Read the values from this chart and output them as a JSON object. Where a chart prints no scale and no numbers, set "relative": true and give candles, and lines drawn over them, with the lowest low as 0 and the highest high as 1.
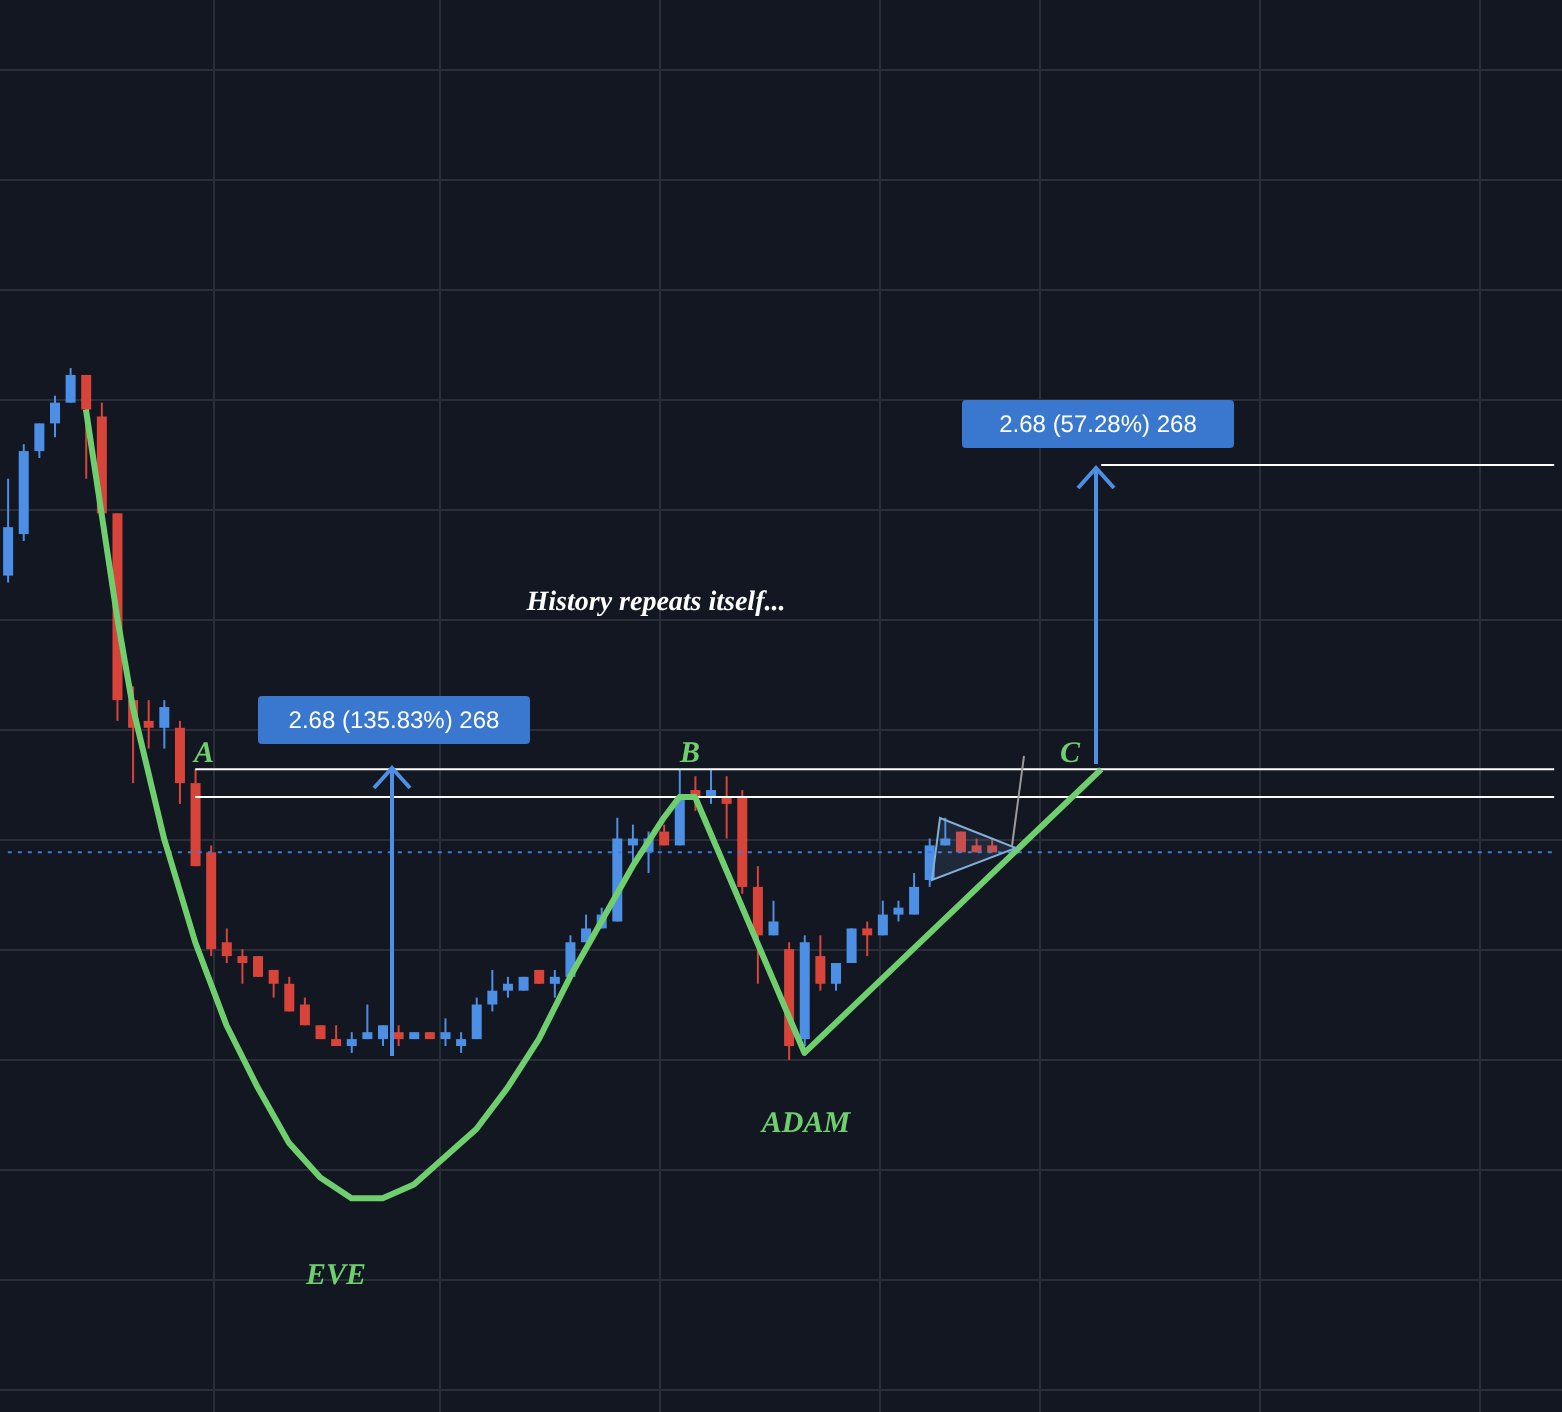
{
  "chart_data": {
    "type": "candlestick",
    "relative": true,
    "grid": true,
    "legend": false,
    "categories": [
      null,
      null,
      null,
      null,
      null,
      null,
      null,
      null,
      null,
      null,
      null,
      null,
      null,
      null,
      null,
      null,
      null,
      null,
      null,
      null,
      null,
      null,
      null,
      null,
      null,
      null,
      null,
      null,
      null,
      null,
      null,
      null,
      null,
      null,
      null,
      null,
      null,
      null,
      null,
      null,
      null,
      null,
      null,
      null,
      null,
      null,
      null,
      null,
      null,
      null,
      null,
      null,
      null,
      null,
      null,
      null,
      null,
      null,
      null,
      null,
      null,
      null,
      null,
      null,
      null,
      null,
      null,
      null,
      null,
      null,
      null,
      null,
      null,
      null,
      null,
      null,
      null,
      null,
      null,
      null,
      null,
      null,
      null,
      null,
      null,
      null,
      null,
      null,
      null,
      null,
      null,
      null,
      null,
      null,
      null,
      null,
      null,
      null,
      null,
      null
    ],
    "ohlc": [
      [
        0.7,
        0.84,
        0.69,
        0.77
      ],
      [
        0.76,
        0.89,
        0.75,
        0.88
      ],
      [
        0.88,
        0.92,
        0.87,
        0.92
      ],
      [
        0.92,
        0.96,
        0.9,
        0.95
      ],
      [
        0.95,
        1,
        0.95,
        0.99
      ],
      [
        0.99,
        0.99,
        0.84,
        0.94
      ],
      [
        0.93,
        0.95,
        0.79,
        0.79
      ],
      [
        0.79,
        0.79,
        0.49,
        0.52
      ],
      [
        0.52,
        0.54,
        0.4,
        0.48
      ],
      [
        0.49,
        0.52,
        0.45,
        0.48
      ],
      [
        0.48,
        0.52,
        0.45,
        0.51
      ],
      [
        0.48,
        0.49,
        0.37,
        0.4
      ],
      [
        0.4,
        0.42,
        0.28,
        0.28
      ],
      [
        0.3,
        0.31,
        0.15,
        0.16
      ],
      [
        0.17,
        0.19,
        0.14,
        0.15
      ],
      [
        0.15,
        0.16,
        0.11,
        0.14
      ],
      [
        0.15,
        0.15,
        0.12,
        0.12
      ],
      [
        0.13,
        0.13,
        0.09,
        0.11
      ],
      [
        0.11,
        0.12,
        0.07,
        0.07
      ],
      [
        0.08,
        0.09,
        0.05,
        0.05
      ],
      [
        0.05,
        0.05,
        0.03,
        0.03
      ],
      [
        0.03,
        0.05,
        0.02,
        0.02
      ],
      [
        0.02,
        0.04,
        0.01,
        0.03
      ],
      [
        0.03,
        0.08,
        0.03,
        0.04
      ],
      [
        0.03,
        0.05,
        0.02,
        0.05
      ],
      [
        0.04,
        0.05,
        0.02,
        0.03
      ],
      [
        0.03,
        0.04,
        0.03,
        0.04
      ],
      [
        0.04,
        0.04,
        0.03,
        0.03
      ],
      [
        0.03,
        0.06,
        0.02,
        0.04
      ],
      [
        0.02,
        0.04,
        0.01,
        0.03
      ],
      [
        0.03,
        0.09,
        0.03,
        0.08
      ],
      [
        0.08,
        0.13,
        0.07,
        0.1
      ],
      [
        0.1,
        0.12,
        0.09,
        0.11
      ],
      [
        0.1,
        0.12,
        0.1,
        0.12
      ],
      [
        0.13,
        0.13,
        0.11,
        0.11
      ],
      [
        0.11,
        0.13,
        0.09,
        0.12
      ],
      [
        0.12,
        0.18,
        0.12,
        0.17
      ],
      [
        0.17,
        0.21,
        0.17,
        0.19
      ],
      [
        0.19,
        0.22,
        0.19,
        0.21
      ],
      [
        0.2,
        0.35,
        0.2,
        0.32
      ],
      [
        0.31,
        0.34,
        0.28,
        0.32
      ],
      [
        0.3,
        0.33,
        0.27,
        0.32
      ],
      [
        0.33,
        0.34,
        0.31,
        0.31
      ],
      [
        0.31,
        0.42,
        0.31,
        0.38
      ],
      [
        0.39,
        0.41,
        0.36,
        0.38
      ],
      [
        0.38,
        0.42,
        0.37,
        0.39
      ],
      [
        0.38,
        0.41,
        0.32,
        0.37
      ],
      [
        0.38,
        0.39,
        0.24,
        0.25
      ],
      [
        0.25,
        0.28,
        0.11,
        0.18
      ],
      [
        0.18,
        0.23,
        0.18,
        0.2
      ],
      [
        0.16,
        0.17,
        0,
        0.02
      ],
      [
        0.03,
        0.18,
        0.02,
        0.17
      ],
      [
        0.15,
        0.18,
        0.1,
        0.11
      ],
      [
        0.11,
        0.14,
        0.1,
        0.14
      ],
      [
        0.14,
        0.19,
        0.14,
        0.19
      ],
      [
        0.19,
        0.2,
        0.15,
        0.18
      ],
      [
        0.18,
        0.23,
        0.18,
        0.21
      ],
      [
        0.21,
        0.23,
        0.2,
        0.22
      ],
      [
        0.21,
        0.27,
        0.21,
        0.25
      ],
      [
        0.26,
        0.32,
        0.25,
        0.31
      ],
      [
        0.31,
        0.35,
        0.31,
        0.32
      ],
      [
        0.33,
        0.33,
        0.3,
        0.3
      ],
      [
        0.31,
        0.32,
        0.3,
        0.3
      ],
      [
        0.31,
        0.32,
        0.3,
        0.3
      ],
      null,
      null,
      null,
      null,
      null,
      null,
      null,
      null,
      null,
      null,
      null,
      null,
      null,
      null,
      null,
      null,
      null,
      null,
      null,
      null,
      null,
      null,
      null,
      null,
      null,
      null,
      null,
      null,
      null,
      null,
      null,
      null,
      null,
      null,
      null,
      null
    ],
    "colors": [
      "#4e8fe6",
      "#4e8fe6",
      "#4e8fe6",
      "#4e8fe6",
      "#4e8fe6",
      "#d9443a",
      "#d9443a",
      "#d9443a",
      "#d9443a",
      "#d9443a",
      "#4e8fe6",
      "#d9443a",
      "#d9443a",
      "#d9443a",
      "#d9443a",
      "#d9443a",
      "#d9443a",
      "#d9443a",
      "#d9443a",
      "#d9443a",
      "#d9443a",
      "#d9443a",
      "#4e8fe6",
      "#4e8fe6",
      "#4e8fe6",
      "#d9443a",
      "#4e8fe6",
      "#d9443a",
      "#4e8fe6",
      "#4e8fe6",
      "#4e8fe6",
      "#4e8fe6",
      "#4e8fe6",
      "#4e8fe6",
      "#d9443a",
      "#4e8fe6",
      "#4e8fe6",
      "#4e8fe6",
      "#4e8fe6",
      "#4e8fe6",
      "#4e8fe6",
      "#4e8fe6",
      "#d9443a",
      "#4e8fe6",
      "#d9443a",
      "#4e8fe6",
      "#d9443a",
      "#d9443a",
      "#d9443a",
      "#4e8fe6",
      "#d9443a",
      "#4e8fe6",
      "#d9443a",
      "#4e8fe6",
      "#4e8fe6",
      "#d9443a",
      "#4e8fe6",
      "#4e8fe6",
      "#4e8fe6",
      "#4e8fe6",
      "#4e8fe6",
      "#d9443a",
      "#d9443a",
      "#d9443a",
      null,
      null,
      null,
      null,
      null,
      null,
      null,
      null,
      null,
      null,
      null,
      null,
      null,
      null,
      null,
      null,
      null,
      null,
      null,
      null,
      null,
      null,
      null,
      null,
      null,
      null,
      null,
      null,
      null,
      null,
      null,
      null,
      null,
      null,
      null,
      null
    ],
    "series": [
      {
        "type": "line",
        "color": "#6fcf6f",
        "values": [
          null,
          null,
          null,
          null,
          null,
          0.94,
          0.79,
          0.64,
          0.51,
          null,
          0.32,
          null,
          0.17,
          null,
          0.05,
          null,
          -0.04,
          null,
          -0.12,
          null,
          -0.17,
          null,
          -0.2,
          null,
          -0.2,
          null,
          -0.18,
          null,
          -0.14,
          null,
          -0.1,
          null,
          -0.04,
          null,
          0.03,
          null,
          0.12,
          null,
          0.2,
          null,
          0.28,
          null,
          0.35,
          0.38,
          0.38,
          null,
          null,
          null,
          null,
          null,
          null,
          0.01,
          null,
          null,
          null,
          null,
          null,
          null,
          null,
          null,
          null,
          null,
          null,
          null,
          null,
          null,
          null,
          null,
          null,
          null,
          0.42,
          null,
          null,
          null,
          null,
          null,
          null,
          null,
          null,
          null,
          null,
          null,
          null,
          null,
          null,
          null,
          null,
          null,
          null,
          null,
          null,
          null,
          null,
          null,
          null,
          null,
          null,
          null,
          null,
          null
        ]
      }
    ],
    "ref_lines": [
      {
        "axis": "y",
        "value": 0.42,
        "color": "#ffffff",
        "line_style": "solid"
      },
      {
        "axis": "y",
        "value": 0.38,
        "color": "#ffffff",
        "line_style": "solid"
      },
      {
        "axis": "y",
        "value": 0.3,
        "color": "#3d7bd9",
        "line_style": "dotted"
      },
      {
        "axis": "y",
        "value": 0.86,
        "color": "#ffffff",
        "line_style": "solid"
      }
    ],
    "annotations": [
      "A",
      "B",
      "C",
      "EVE",
      "ADAM",
      "History repeats itself...",
      "2.68 (135.83%) 268",
      "2.68 (57.28%) 268"
    ]
  }
}
